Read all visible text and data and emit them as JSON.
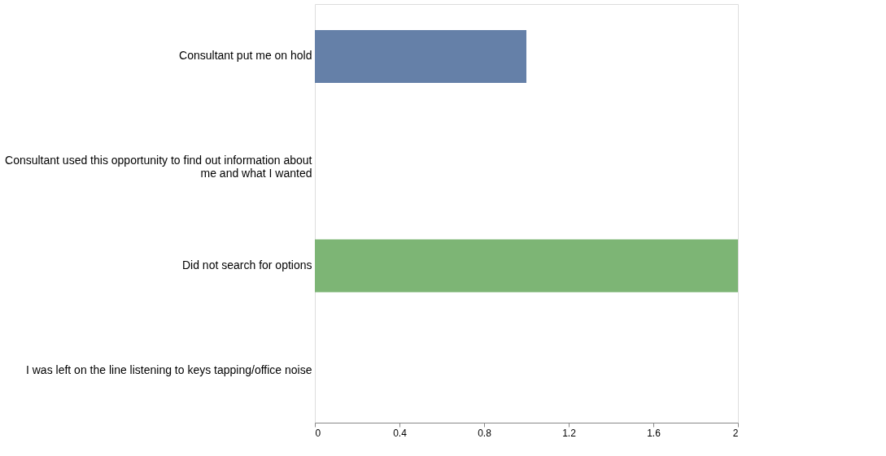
{
  "chart_data": {
    "type": "bar",
    "orientation": "horizontal",
    "categories": [
      "Consultant put me on hold",
      "Consultant used this opportunity to find out information about me and what I wanted",
      "Did not search for options",
      "I was left on the line listening to keys tapping/office noise"
    ],
    "values": [
      1,
      0,
      2,
      0
    ],
    "colors": [
      "#6580a8",
      "#b85c5a",
      "#7db575",
      "#d4873a"
    ],
    "xlim": [
      0,
      2
    ],
    "xticks": [
      0,
      0.4,
      0.8,
      1.2,
      1.6,
      2
    ],
    "grid": false
  }
}
